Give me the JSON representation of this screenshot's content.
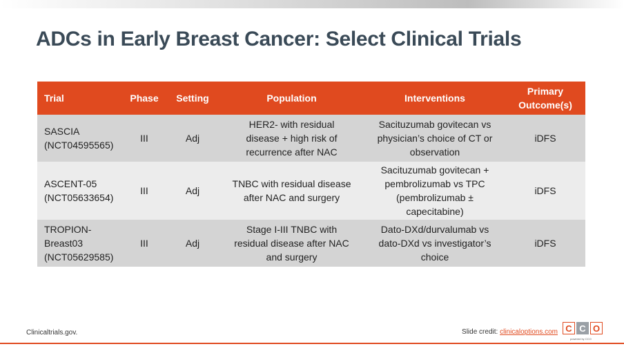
{
  "slide": {
    "title": "ADCs in Early Breast Cancer: Select Clinical Trials",
    "source": "Clinicaltrials.gov.",
    "credit_prefix": "Slide credit:",
    "credit_link": "clinicaloptions.com",
    "logo_letters": [
      "C",
      "C",
      "O"
    ],
    "logo_sub": "powered by CCO"
  },
  "table": {
    "headers": {
      "trial": "Trial",
      "phase": "Phase",
      "setting": "Setting",
      "population": "Population",
      "interventions": "Interventions",
      "primary_outcome_line1": "Primary",
      "primary_outcome_line2": "Outcome(s)"
    },
    "rows": [
      {
        "trial_line1": "SASCIA",
        "trial_line2": "(NCT04595565)",
        "trial_line3": "",
        "phase": "III",
        "setting": "Adj",
        "population_line1": "HER2- with residual",
        "population_line2": "disease + high risk of",
        "population_line3": "recurrence after NAC",
        "interventions_line1": "Sacituzumab govitecan vs",
        "interventions_line2": "physician’s choice of CT or",
        "interventions_line3": "observation",
        "interventions_line4": "",
        "outcome": "iDFS"
      },
      {
        "trial_line1": "ASCENT-05",
        "trial_line2": "(NCT05633654)",
        "trial_line3": "",
        "phase": "III",
        "setting": "Adj",
        "population_line1": "TNBC with residual disease",
        "population_line2": "after NAC and surgery",
        "population_line3": "",
        "interventions_line1": "Sacituzumab govitecan +",
        "interventions_line2": "pembrolizumab vs TPC",
        "interventions_line3": "(pembrolizumab ±",
        "interventions_line4": "capecitabine)",
        "outcome": "iDFS"
      },
      {
        "trial_line1": "TROPION-",
        "trial_line2": "Breast03",
        "trial_line3": "(NCT05629585)",
        "phase": "III",
        "setting": "Adj",
        "population_line1": "Stage I-III TNBC with",
        "population_line2": "residual disease after NAC",
        "population_line3": "and surgery",
        "interventions_line1": "Dato-DXd/durvalumab vs",
        "interventions_line2": "dato-DXd vs investigator’s",
        "interventions_line3": "choice",
        "interventions_line4": "",
        "outcome": "iDFS"
      }
    ]
  }
}
